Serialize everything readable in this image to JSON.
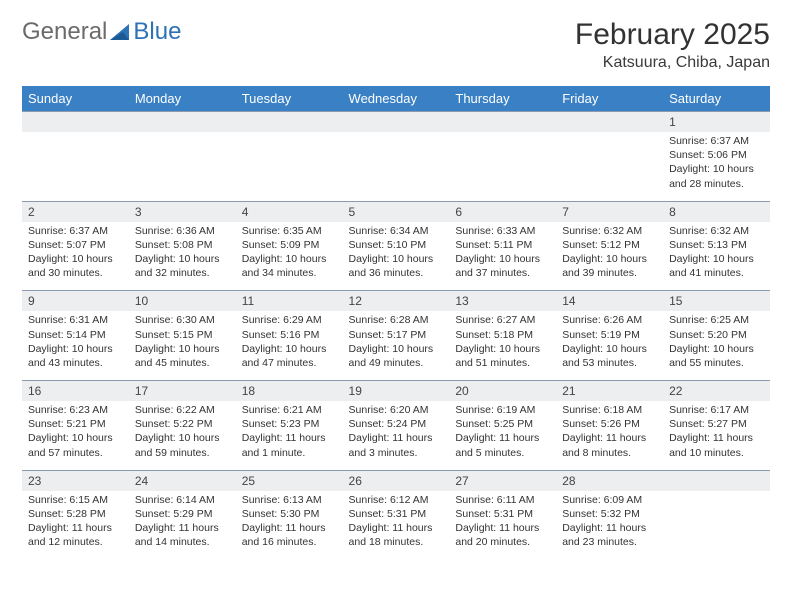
{
  "brand": {
    "word1": "General",
    "word2": "Blue"
  },
  "title": "February 2025",
  "location": "Katsuura, Chiba, Japan",
  "colors": {
    "header_bg": "#3a80c4",
    "header_text": "#ffffff",
    "daynum_bg": "#eceef0",
    "rule": "#8a9bb0",
    "brand_gray": "#6b6b6b",
    "brand_blue": "#2d72b5"
  },
  "fonts": {
    "title_size_pt": 30,
    "location_size_pt": 16,
    "dow_size_pt": 13,
    "body_size_pt": 10.5
  },
  "days_of_week": [
    "Sunday",
    "Monday",
    "Tuesday",
    "Wednesday",
    "Thursday",
    "Friday",
    "Saturday"
  ],
  "weeks": [
    [
      {
        "n": "",
        "sunrise": "",
        "sunset": "",
        "daylight": ""
      },
      {
        "n": "",
        "sunrise": "",
        "sunset": "",
        "daylight": ""
      },
      {
        "n": "",
        "sunrise": "",
        "sunset": "",
        "daylight": ""
      },
      {
        "n": "",
        "sunrise": "",
        "sunset": "",
        "daylight": ""
      },
      {
        "n": "",
        "sunrise": "",
        "sunset": "",
        "daylight": ""
      },
      {
        "n": "",
        "sunrise": "",
        "sunset": "",
        "daylight": ""
      },
      {
        "n": "1",
        "sunrise": "Sunrise: 6:37 AM",
        "sunset": "Sunset: 5:06 PM",
        "daylight": "Daylight: 10 hours and 28 minutes."
      }
    ],
    [
      {
        "n": "2",
        "sunrise": "Sunrise: 6:37 AM",
        "sunset": "Sunset: 5:07 PM",
        "daylight": "Daylight: 10 hours and 30 minutes."
      },
      {
        "n": "3",
        "sunrise": "Sunrise: 6:36 AM",
        "sunset": "Sunset: 5:08 PM",
        "daylight": "Daylight: 10 hours and 32 minutes."
      },
      {
        "n": "4",
        "sunrise": "Sunrise: 6:35 AM",
        "sunset": "Sunset: 5:09 PM",
        "daylight": "Daylight: 10 hours and 34 minutes."
      },
      {
        "n": "5",
        "sunrise": "Sunrise: 6:34 AM",
        "sunset": "Sunset: 5:10 PM",
        "daylight": "Daylight: 10 hours and 36 minutes."
      },
      {
        "n": "6",
        "sunrise": "Sunrise: 6:33 AM",
        "sunset": "Sunset: 5:11 PM",
        "daylight": "Daylight: 10 hours and 37 minutes."
      },
      {
        "n": "7",
        "sunrise": "Sunrise: 6:32 AM",
        "sunset": "Sunset: 5:12 PM",
        "daylight": "Daylight: 10 hours and 39 minutes."
      },
      {
        "n": "8",
        "sunrise": "Sunrise: 6:32 AM",
        "sunset": "Sunset: 5:13 PM",
        "daylight": "Daylight: 10 hours and 41 minutes."
      }
    ],
    [
      {
        "n": "9",
        "sunrise": "Sunrise: 6:31 AM",
        "sunset": "Sunset: 5:14 PM",
        "daylight": "Daylight: 10 hours and 43 minutes."
      },
      {
        "n": "10",
        "sunrise": "Sunrise: 6:30 AM",
        "sunset": "Sunset: 5:15 PM",
        "daylight": "Daylight: 10 hours and 45 minutes."
      },
      {
        "n": "11",
        "sunrise": "Sunrise: 6:29 AM",
        "sunset": "Sunset: 5:16 PM",
        "daylight": "Daylight: 10 hours and 47 minutes."
      },
      {
        "n": "12",
        "sunrise": "Sunrise: 6:28 AM",
        "sunset": "Sunset: 5:17 PM",
        "daylight": "Daylight: 10 hours and 49 minutes."
      },
      {
        "n": "13",
        "sunrise": "Sunrise: 6:27 AM",
        "sunset": "Sunset: 5:18 PM",
        "daylight": "Daylight: 10 hours and 51 minutes."
      },
      {
        "n": "14",
        "sunrise": "Sunrise: 6:26 AM",
        "sunset": "Sunset: 5:19 PM",
        "daylight": "Daylight: 10 hours and 53 minutes."
      },
      {
        "n": "15",
        "sunrise": "Sunrise: 6:25 AM",
        "sunset": "Sunset: 5:20 PM",
        "daylight": "Daylight: 10 hours and 55 minutes."
      }
    ],
    [
      {
        "n": "16",
        "sunrise": "Sunrise: 6:23 AM",
        "sunset": "Sunset: 5:21 PM",
        "daylight": "Daylight: 10 hours and 57 minutes."
      },
      {
        "n": "17",
        "sunrise": "Sunrise: 6:22 AM",
        "sunset": "Sunset: 5:22 PM",
        "daylight": "Daylight: 10 hours and 59 minutes."
      },
      {
        "n": "18",
        "sunrise": "Sunrise: 6:21 AM",
        "sunset": "Sunset: 5:23 PM",
        "daylight": "Daylight: 11 hours and 1 minute."
      },
      {
        "n": "19",
        "sunrise": "Sunrise: 6:20 AM",
        "sunset": "Sunset: 5:24 PM",
        "daylight": "Daylight: 11 hours and 3 minutes."
      },
      {
        "n": "20",
        "sunrise": "Sunrise: 6:19 AM",
        "sunset": "Sunset: 5:25 PM",
        "daylight": "Daylight: 11 hours and 5 minutes."
      },
      {
        "n": "21",
        "sunrise": "Sunrise: 6:18 AM",
        "sunset": "Sunset: 5:26 PM",
        "daylight": "Daylight: 11 hours and 8 minutes."
      },
      {
        "n": "22",
        "sunrise": "Sunrise: 6:17 AM",
        "sunset": "Sunset: 5:27 PM",
        "daylight": "Daylight: 11 hours and 10 minutes."
      }
    ],
    [
      {
        "n": "23",
        "sunrise": "Sunrise: 6:15 AM",
        "sunset": "Sunset: 5:28 PM",
        "daylight": "Daylight: 11 hours and 12 minutes."
      },
      {
        "n": "24",
        "sunrise": "Sunrise: 6:14 AM",
        "sunset": "Sunset: 5:29 PM",
        "daylight": "Daylight: 11 hours and 14 minutes."
      },
      {
        "n": "25",
        "sunrise": "Sunrise: 6:13 AM",
        "sunset": "Sunset: 5:30 PM",
        "daylight": "Daylight: 11 hours and 16 minutes."
      },
      {
        "n": "26",
        "sunrise": "Sunrise: 6:12 AM",
        "sunset": "Sunset: 5:31 PM",
        "daylight": "Daylight: 11 hours and 18 minutes."
      },
      {
        "n": "27",
        "sunrise": "Sunrise: 6:11 AM",
        "sunset": "Sunset: 5:31 PM",
        "daylight": "Daylight: 11 hours and 20 minutes."
      },
      {
        "n": "28",
        "sunrise": "Sunrise: 6:09 AM",
        "sunset": "Sunset: 5:32 PM",
        "daylight": "Daylight: 11 hours and 23 minutes."
      },
      {
        "n": "",
        "sunrise": "",
        "sunset": "",
        "daylight": ""
      }
    ]
  ]
}
